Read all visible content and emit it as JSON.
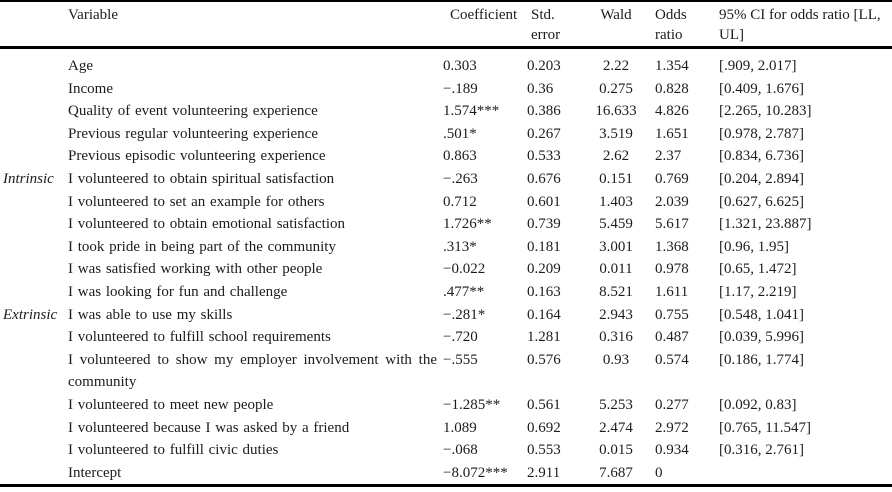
{
  "page": {
    "background": "#ffffff",
    "text_color": "#1c1c1c",
    "rule_color": "#000000"
  },
  "table": {
    "header": {
      "group": "",
      "variable": "Variable",
      "coefficient": "Coefficient",
      "std_error": "Std. error",
      "wald": "Wald",
      "odds_ratio": "Odds ratio",
      "ci": "95% CI for odds ratio [LL, UL]"
    },
    "rows": [
      {
        "group": "",
        "variable": "Age",
        "coefficient": "0.303",
        "std_error": "0.203",
        "wald": "2.22",
        "odds_ratio": "1.354",
        "ci": "[.909, 2.017]"
      },
      {
        "group": "",
        "variable": "Income",
        "coefficient": "−.189",
        "std_error": "0.36",
        "wald": "0.275",
        "odds_ratio": "0.828",
        "ci": "[0.409, 1.676]"
      },
      {
        "group": "",
        "variable": "Quality of event volunteering experience",
        "coefficient": "1.574***",
        "std_error": "0.386",
        "wald": "16.633",
        "odds_ratio": "4.826",
        "ci": "[2.265, 10.283]"
      },
      {
        "group": "",
        "variable": "Previous regular volunteering experience",
        "coefficient": ".501*",
        "std_error": "0.267",
        "wald": "3.519",
        "odds_ratio": "1.651",
        "ci": "[0.978, 2.787]"
      },
      {
        "group": "",
        "variable": "Previous episodic volunteering experience",
        "coefficient": "0.863",
        "std_error": "0.533",
        "wald": "2.62",
        "odds_ratio": "2.37",
        "ci": "[0.834, 6.736]"
      },
      {
        "group": "Intrinsic",
        "variable": "I volunteered to obtain spiritual satisfaction",
        "coefficient": "−.263",
        "std_error": "0.676",
        "wald": "0.151",
        "odds_ratio": "0.769",
        "ci": "[0.204, 2.894]"
      },
      {
        "group": "",
        "variable": "I volunteered to set an example for others",
        "coefficient": "0.712",
        "std_error": "0.601",
        "wald": "1.403",
        "odds_ratio": "2.039",
        "ci": "[0.627, 6.625]"
      },
      {
        "group": "",
        "variable": "I volunteered to obtain emotional satisfaction",
        "coefficient": "1.726**",
        "std_error": "0.739",
        "wald": "5.459",
        "odds_ratio": "5.617",
        "ci": "[1.321, 23.887]"
      },
      {
        "group": "",
        "variable": "I took pride in being part of the community",
        "coefficient": ".313*",
        "std_error": "0.181",
        "wald": "3.001",
        "odds_ratio": "1.368",
        "ci": "[0.96, 1.95]"
      },
      {
        "group": "",
        "variable": "I was satisfied working with other people",
        "coefficient": "−0.022",
        "std_error": "0.209",
        "wald": "0.011",
        "odds_ratio": "0.978",
        "ci": "[0.65, 1.472]"
      },
      {
        "group": "",
        "variable": "I was looking for fun and challenge",
        "coefficient": ".477**",
        "std_error": "0.163",
        "wald": "8.521",
        "odds_ratio": "1.611",
        "ci": "[1.17, 2.219]"
      },
      {
        "group": "Extrinsic",
        "variable": "I was able to use my skills",
        "coefficient": "−.281*",
        "std_error": "0.164",
        "wald": "2.943",
        "odds_ratio": "0.755",
        "ci": "[0.548, 1.041]"
      },
      {
        "group": "",
        "variable": "I volunteered to fulfill school requirements",
        "coefficient": "−.720",
        "std_error": "1.281",
        "wald": "0.316",
        "odds_ratio": "0.487",
        "ci": "[0.039, 5.996]"
      },
      {
        "group": "",
        "variable": "I volunteered to show my employer involvement with the community",
        "coefficient": "−.555",
        "std_error": "0.576",
        "wald": "0.93",
        "odds_ratio": "0.574",
        "ci": "[0.186, 1.774]"
      },
      {
        "group": "",
        "variable": "I volunteered to meet new people",
        "coefficient": "−1.285**",
        "std_error": "0.561",
        "wald": "5.253",
        "odds_ratio": "0.277",
        "ci": "[0.092, 0.83]"
      },
      {
        "group": "",
        "variable": "I volunteered because I was asked by a friend",
        "coefficient": "1.089",
        "std_error": "0.692",
        "wald": "2.474",
        "odds_ratio": "2.972",
        "ci": "[0.765, 11.547]"
      },
      {
        "group": "",
        "variable": "I volunteered to fulfill civic duties",
        "coefficient": "−.068",
        "std_error": "0.553",
        "wald": "0.015",
        "odds_ratio": "0.934",
        "ci": "[0.316, 2.761]"
      },
      {
        "group": "",
        "variable": "Intercept",
        "coefficient": "−8.072***",
        "std_error": "2.911",
        "wald": "7.687",
        "odds_ratio": "0",
        "ci": ""
      }
    ]
  }
}
